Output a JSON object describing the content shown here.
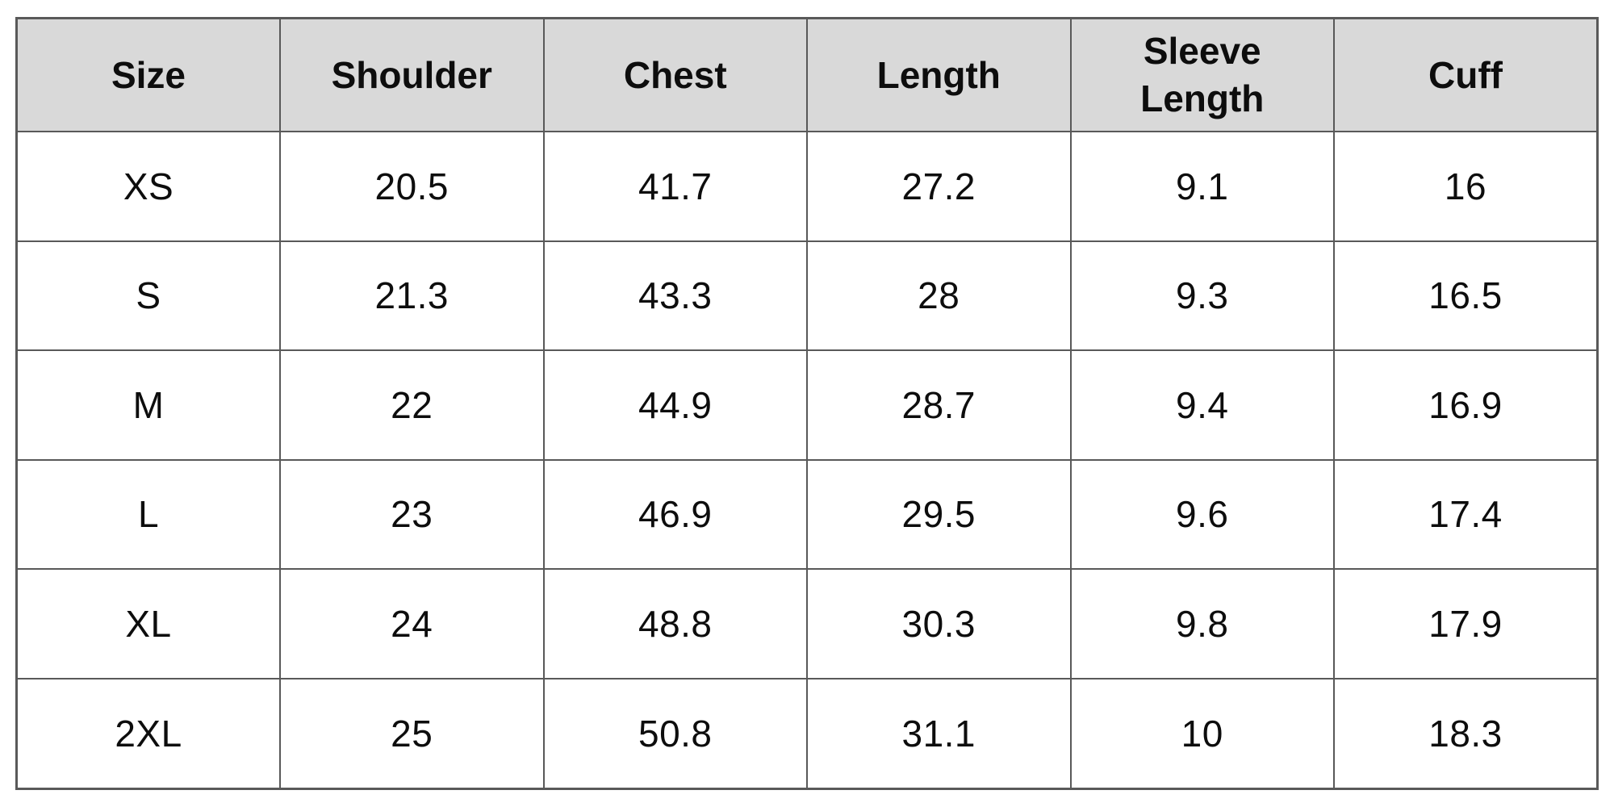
{
  "colors": {
    "page_background": "#ffffff",
    "header_background": "#d9d9d9",
    "grid_border": "#595959",
    "text": "#0d0d0d"
  },
  "size_chart": {
    "headers": [
      "Size",
      "Shoulder",
      "Chest",
      "Length",
      "Sleeve Length",
      "Cuff"
    ],
    "rows": [
      [
        "XS",
        "20.5",
        "41.7",
        "27.2",
        "9.1",
        "16"
      ],
      [
        "S",
        "21.3",
        "43.3",
        "28",
        "9.3",
        "16.5"
      ],
      [
        "M",
        "22",
        "44.9",
        "28.7",
        "9.4",
        "16.9"
      ],
      [
        "L",
        "23",
        "46.9",
        "29.5",
        "9.6",
        "17.4"
      ],
      [
        "XL",
        "24",
        "48.8",
        "30.3",
        "9.8",
        "17.9"
      ],
      [
        "2XL",
        "25",
        "50.8",
        "31.1",
        "10",
        "18.3"
      ]
    ]
  }
}
